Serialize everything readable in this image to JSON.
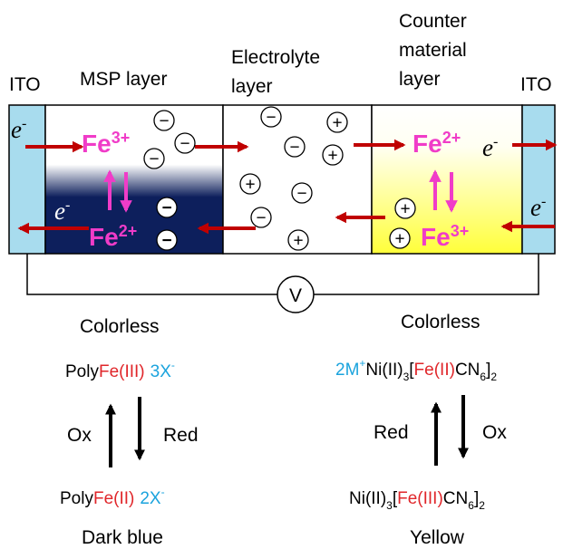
{
  "labels": {
    "ito_left": "ITO",
    "msp_layer": "MSP layer",
    "electrolyte_line1": "Electrolyte",
    "electrolyte_line2": "layer",
    "counter_line1": "Counter",
    "counter_line2": "material",
    "counter_line3": "layer",
    "ito_right": "ITO",
    "voltmeter": "V"
  },
  "carriers": {
    "electron": "e",
    "minus": "-",
    "fe_base": "Fe",
    "fe3_charge": "3+",
    "fe2_charge": "2+",
    "anion_sign": "−",
    "cation_sign": "+"
  },
  "left_side": {
    "top_state": "Colorless",
    "oxidized_prefix": "Poly",
    "oxidized_fe": "Fe(III)",
    "oxidized_counter": "3X",
    "oxidized_counter_sup": "-",
    "ox_label": "Ox",
    "red_label": "Red",
    "reduced_prefix": "Poly",
    "reduced_fe": "Fe(II)",
    "reduced_counter": "2X",
    "reduced_counter_sup": "-",
    "bottom_state": "Dark blue"
  },
  "right_side": {
    "top_state": "Colorless",
    "top_cation": "2M",
    "top_cation_sup": "+",
    "top_ni": "Ni(II)",
    "top_sub3": "3",
    "top_bracket_open": "[",
    "top_fe": "Fe(II)",
    "top_cn": "CN",
    "top_sub6": "6",
    "top_bracket_close": "]",
    "top_sub2": "2",
    "red_label": "Red",
    "ox_label": "Ox",
    "bottom_ni": "Ni(II)",
    "bottom_sub3": "3",
    "bottom_bracket_open": "[",
    "bottom_fe": "Fe(III)",
    "bottom_cn": "CN",
    "bottom_sub6": "6",
    "bottom_bracket_close": "]",
    "bottom_sub2": "2",
    "bottom_state": "Yellow"
  },
  "colors": {
    "ito": "#a8dcee",
    "msp_dark": "#0d1f5c",
    "counter_yellow": "#ffff44",
    "arrow_red": "#c00000",
    "fe_magenta": "#f03cc8",
    "fe_text_red": "#e0262a",
    "counter_ion_blue": "#1aa3dd"
  }
}
